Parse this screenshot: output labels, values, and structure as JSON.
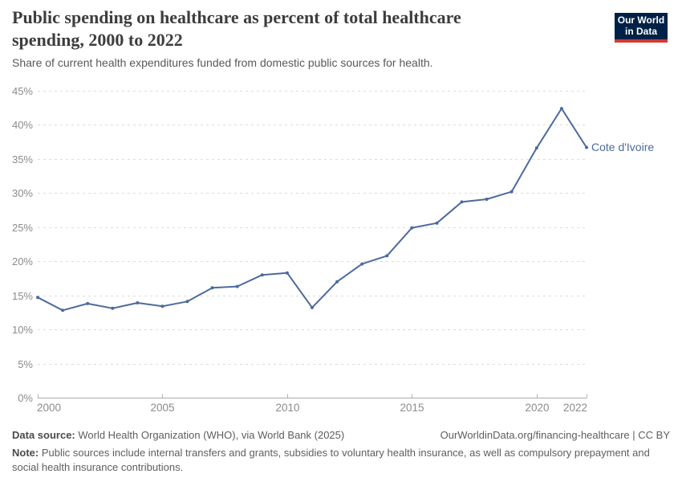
{
  "header": {
    "title": "Public spending on healthcare as percent of total healthcare spending, 2000 to 2022",
    "subtitle": "Share of current health expenditures funded from domestic public sources for health.",
    "logo_line1": "Our World",
    "logo_line2": "in Data",
    "logo_colors": {
      "background": "#002147",
      "underline": "#d13b32"
    }
  },
  "chart_data": {
    "type": "line",
    "title": "Public spending on healthcare as percent of total healthcare spending, 2000 to 2022",
    "xlabel": "",
    "ylabel": "",
    "xlim": [
      2000,
      2022
    ],
    "ylim": [
      0,
      45
    ],
    "grid": "horizontal-dashed",
    "legend_position": "end-of-line",
    "x": [
      2000,
      2001,
      2002,
      2003,
      2004,
      2005,
      2006,
      2007,
      2008,
      2009,
      2010,
      2011,
      2012,
      2013,
      2014,
      2015,
      2016,
      2017,
      2018,
      2019,
      2020,
      2021,
      2022
    ],
    "series": [
      {
        "name": "Cote d'Ivoire",
        "color": "#4c6a9c",
        "values": [
          14.7,
          12.8,
          13.8,
          13.1,
          13.9,
          13.4,
          14.1,
          16.1,
          16.3,
          18.0,
          18.3,
          13.2,
          17.0,
          19.6,
          20.8,
          24.9,
          25.6,
          28.7,
          29.1,
          30.2,
          36.6,
          42.4,
          36.7
        ]
      }
    ],
    "yticks": [
      {
        "v": 0,
        "label": "0%"
      },
      {
        "v": 5,
        "label": "5%"
      },
      {
        "v": 10,
        "label": "10%"
      },
      {
        "v": 15,
        "label": "15%"
      },
      {
        "v": 20,
        "label": "20%"
      },
      {
        "v": 25,
        "label": "25%"
      },
      {
        "v": 30,
        "label": "30%"
      },
      {
        "v": 35,
        "label": "35%"
      },
      {
        "v": 40,
        "label": "40%"
      },
      {
        "v": 45,
        "label": "45%"
      }
    ],
    "xticks": [
      {
        "v": 2000,
        "label": "2000"
      },
      {
        "v": 2005,
        "label": "2005"
      },
      {
        "v": 2010,
        "label": "2010"
      },
      {
        "v": 2015,
        "label": "2015"
      },
      {
        "v": 2020,
        "label": "2020"
      },
      {
        "v": 2022,
        "label": "2022"
      }
    ],
    "colors": {
      "gridline": "#dcdcdc",
      "axis_line": "#a9a9a9",
      "tick_mark": "#b4b4b4",
      "tick_label": "#8b8b8b"
    }
  },
  "footer": {
    "datasource_label": "Data source:",
    "datasource_text": " World Health Organization (WHO), via World Bank (2025)",
    "link_text": "OurWorldinData.org/financing-healthcare | CC BY",
    "note_label": "Note:",
    "note_text": " Public sources include internal transfers and grants, subsidies to voluntary health insurance, as well as compulsory prepayment and social health insurance contributions."
  }
}
